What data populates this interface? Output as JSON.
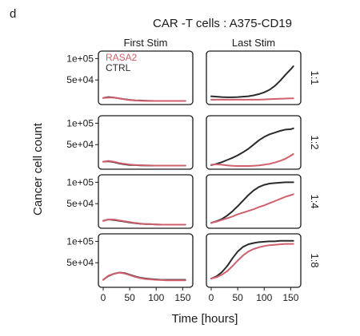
{
  "figure": {
    "panel_letter": "d",
    "title": "CAR -T cells : A375-CD19"
  },
  "chart_data": {
    "type": "line",
    "title": "CAR -T cells : A375-CD19",
    "xlabel": "Time [hours]",
    "ylabel": "Cancer cell count",
    "columns": [
      "First Stim",
      "Last Stim"
    ],
    "rows": [
      "1:1",
      "1:2",
      "1:4",
      "1:8"
    ],
    "xlim": [
      0,
      160
    ],
    "ylim": [
      0,
      110000
    ],
    "xticks": [
      0,
      50,
      100,
      150
    ],
    "xtick_labels": [
      "0",
      "50",
      "100",
      "150"
    ],
    "yticks": [
      50000,
      100000
    ],
    "ytick_labels": [
      "5e+04",
      "1e+05"
    ],
    "grid": false,
    "legend": {
      "position": "top-left of first panel",
      "entries": [
        "RASA2",
        "CTRL"
      ]
    },
    "colors": {
      "RASA2": "#d0606c",
      "CTRL": "#2b2b2b"
    },
    "x": [
      0,
      10,
      20,
      30,
      40,
      50,
      60,
      70,
      80,
      90,
      100,
      110,
      120,
      130,
      140,
      150,
      155
    ],
    "panels": [
      {
        "row": "1:1",
        "column": "First Stim",
        "series": [
          {
            "name": "RASA2",
            "values": [
              8000,
              9000,
              9000,
              7000,
              5000,
              3000,
              2000,
              1500,
              1200,
              1000,
              1000,
              1000,
              1000,
              1000,
              1000,
              1000,
              1000
            ]
          },
          {
            "name": "CTRL",
            "values": [
              8000,
              10000,
              9000,
              7000,
              5000,
              3500,
              2500,
              2000,
              1500,
              1200,
              1000,
              1000,
              1000,
              1000,
              1000,
              1000,
              1000
            ]
          }
        ]
      },
      {
        "row": "1:1",
        "column": "Last Stim",
        "series": [
          {
            "name": "RASA2",
            "values": [
              4000,
              4000,
              4000,
              4000,
              4000,
              4000,
              4000,
              4000,
              4000,
              4000,
              4500,
              5000,
              5500,
              6000,
              6500,
              7000,
              7000
            ]
          },
          {
            "name": "CTRL",
            "values": [
              12000,
              11000,
              10000,
              9500,
              9500,
              10000,
              11000,
              12000,
              14000,
              17000,
              21000,
              27000,
              36000,
              48000,
              62000,
              75000,
              82000
            ]
          }
        ]
      },
      {
        "row": "1:2",
        "column": "First Stim",
        "series": [
          {
            "name": "RASA2",
            "values": [
              10000,
              12000,
              10000,
              7000,
              5000,
              3500,
              2500,
              2000,
              1500,
              1200,
              1000,
              1000,
              1000,
              1000,
              1000,
              1000,
              1000
            ]
          },
          {
            "name": "CTRL",
            "values": [
              10000,
              11000,
              9000,
              6000,
              4000,
              2500,
              2000,
              1500,
              1200,
              1000,
              1000,
              1000,
              1000,
              1000,
              1000,
              1000,
              1000
            ]
          }
        ]
      },
      {
        "row": "1:2",
        "column": "Last Stim",
        "series": [
          {
            "name": "RASA2",
            "values": [
              3000,
              4000,
              3000,
              1500,
              500,
              0,
              0,
              0,
              500,
              1500,
              3000,
              5000,
              8000,
              12000,
              17000,
              24000,
              28000
            ]
          },
          {
            "name": "CTRL",
            "values": [
              2000,
              5000,
              9000,
              14000,
              19000,
              25000,
              32000,
              40000,
              50000,
              60000,
              68000,
              74000,
              78000,
              82000,
              85000,
              86000,
              88000
            ]
          }
        ]
      },
      {
        "row": "1:4",
        "column": "First Stim",
        "series": [
          {
            "name": "RASA2",
            "values": [
              10000,
              13000,
              13000,
              11000,
              9000,
              7000,
              5000,
              3500,
              2500,
              2000,
              1500,
              1000,
              1000,
              1000,
              1000,
              1000,
              1000
            ]
          },
          {
            "name": "CTRL",
            "values": [
              10000,
              13000,
              12000,
              10000,
              8000,
              6000,
              4500,
              3000,
              2500,
              2000,
              1500,
              1000,
              1000,
              1000,
              1000,
              1000,
              1000
            ]
          }
        ]
      },
      {
        "row": "1:4",
        "column": "Last Stim",
        "series": [
          {
            "name": "RASA2",
            "values": [
              5000,
              8000,
              12000,
              16000,
              20000,
              25000,
              29000,
              33000,
              37000,
              42000,
              46000,
              51000,
              56000,
              61000,
              66000,
              70000,
              72000
            ]
          },
          {
            "name": "CTRL",
            "values": [
              5000,
              9000,
              14000,
              22000,
              32000,
              44000,
              57000,
              70000,
              81000,
              89000,
              94000,
              97000,
              98000,
              99000,
              100000,
              100000,
              100000
            ]
          }
        ]
      },
      {
        "row": "1:8",
        "column": "First Stim",
        "series": [
          {
            "name": "RASA2",
            "values": [
              10000,
              20000,
              24000,
              27000,
              25000,
              21000,
              17000,
              14000,
              12000,
              11000,
              10000,
              9500,
              9000,
              9000,
              9000,
              9000,
              9000
            ]
          },
          {
            "name": "CTRL",
            "values": [
              10000,
              19000,
              24000,
              27000,
              26000,
              22000,
              18000,
              15000,
              13000,
              12000,
              11000,
              10000,
              10000,
              10000,
              10000,
              10000,
              10000
            ]
          }
        ]
      },
      {
        "row": "1:8",
        "column": "Last Stim",
        "series": [
          {
            "name": "RASA2",
            "values": [
              13000,
              16000,
              22000,
              30000,
              42000,
              55000,
              67000,
              76000,
              82000,
              86000,
              89000,
              91000,
              92000,
              93000,
              94000,
              94000,
              94000
            ]
          },
          {
            "name": "CTRL",
            "values": [
              13000,
              18000,
              28000,
              42000,
              60000,
              76000,
              87000,
              93000,
              96000,
              98000,
              99000,
              100000,
              100000,
              101000,
              101000,
              101000,
              101000
            ]
          }
        ]
      }
    ]
  }
}
